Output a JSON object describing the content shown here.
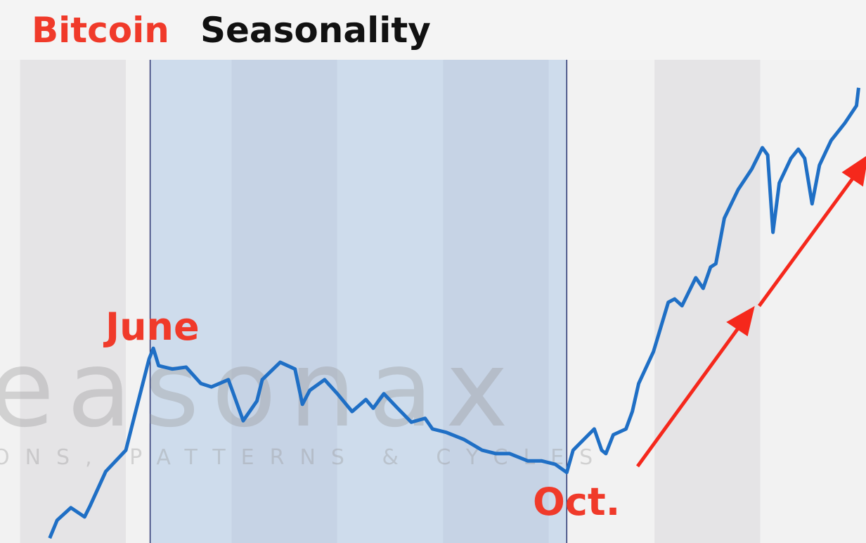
{
  "chart_data": {
    "type": "line",
    "title": {
      "highlight": "Bitcoin",
      "rest": "Seasonality"
    },
    "annotations": {
      "peak": "June",
      "trough": "Oct."
    },
    "watermark": {
      "logo": "easonax",
      "tagline": "ONS, PATTERNS & CYCLES"
    },
    "xlim": [
      3.81,
      12
    ],
    "ylim": [
      0,
      100
    ],
    "highlight": [
      5.23,
      9.17
    ],
    "series": [
      {
        "color": "#1f6fc5",
        "x": [
          4.28,
          4.35,
          4.48,
          4.61,
          4.66,
          4.81,
          5.0,
          5.11,
          5.22,
          5.26,
          5.31,
          5.44,
          5.57,
          5.71,
          5.81,
          5.97,
          6.11,
          6.24,
          6.29,
          6.46,
          6.6,
          6.67,
          6.74,
          6.88,
          7.0,
          7.14,
          7.27,
          7.34,
          7.44,
          7.57,
          7.7,
          7.83,
          7.9,
          8.03,
          8.2,
          8.37,
          8.5,
          8.63,
          8.8,
          8.93,
          9.06,
          9.17,
          9.23,
          9.43,
          9.5,
          9.54,
          9.61,
          9.73,
          9.79,
          9.85,
          9.99,
          10.13,
          10.19,
          10.26,
          10.39,
          10.46,
          10.53,
          10.58,
          10.66,
          10.79,
          10.92,
          11.02,
          11.07,
          11.12,
          11.18,
          11.29,
          11.36,
          11.42,
          11.49,
          11.56,
          11.67,
          11.8,
          11.91,
          11.93
        ],
        "values": [
          1.0,
          4.7,
          7.3,
          5.4,
          7.6,
          14.8,
          19.2,
          28.7,
          38.1,
          40.3,
          36.7,
          36.0,
          36.4,
          33.0,
          32.3,
          33.8,
          25.3,
          29.4,
          33.8,
          37.4,
          36.0,
          28.7,
          31.6,
          33.8,
          30.9,
          27.2,
          29.7,
          27.9,
          30.9,
          27.9,
          25.0,
          25.8,
          23.6,
          22.9,
          21.4,
          19.2,
          18.5,
          18.5,
          17.0,
          17.0,
          16.3,
          14.6,
          19.2,
          23.6,
          19.2,
          18.5,
          22.4,
          23.6,
          27.2,
          33.0,
          39.6,
          49.8,
          50.5,
          49.1,
          54.9,
          52.7,
          57.1,
          57.8,
          67.2,
          73.1,
          77.4,
          81.8,
          80.3,
          64.3,
          74.5,
          79.6,
          81.5,
          79.6,
          70.2,
          78.2,
          83.3,
          86.9,
          90.5,
          94.2
        ]
      }
    ]
  }
}
